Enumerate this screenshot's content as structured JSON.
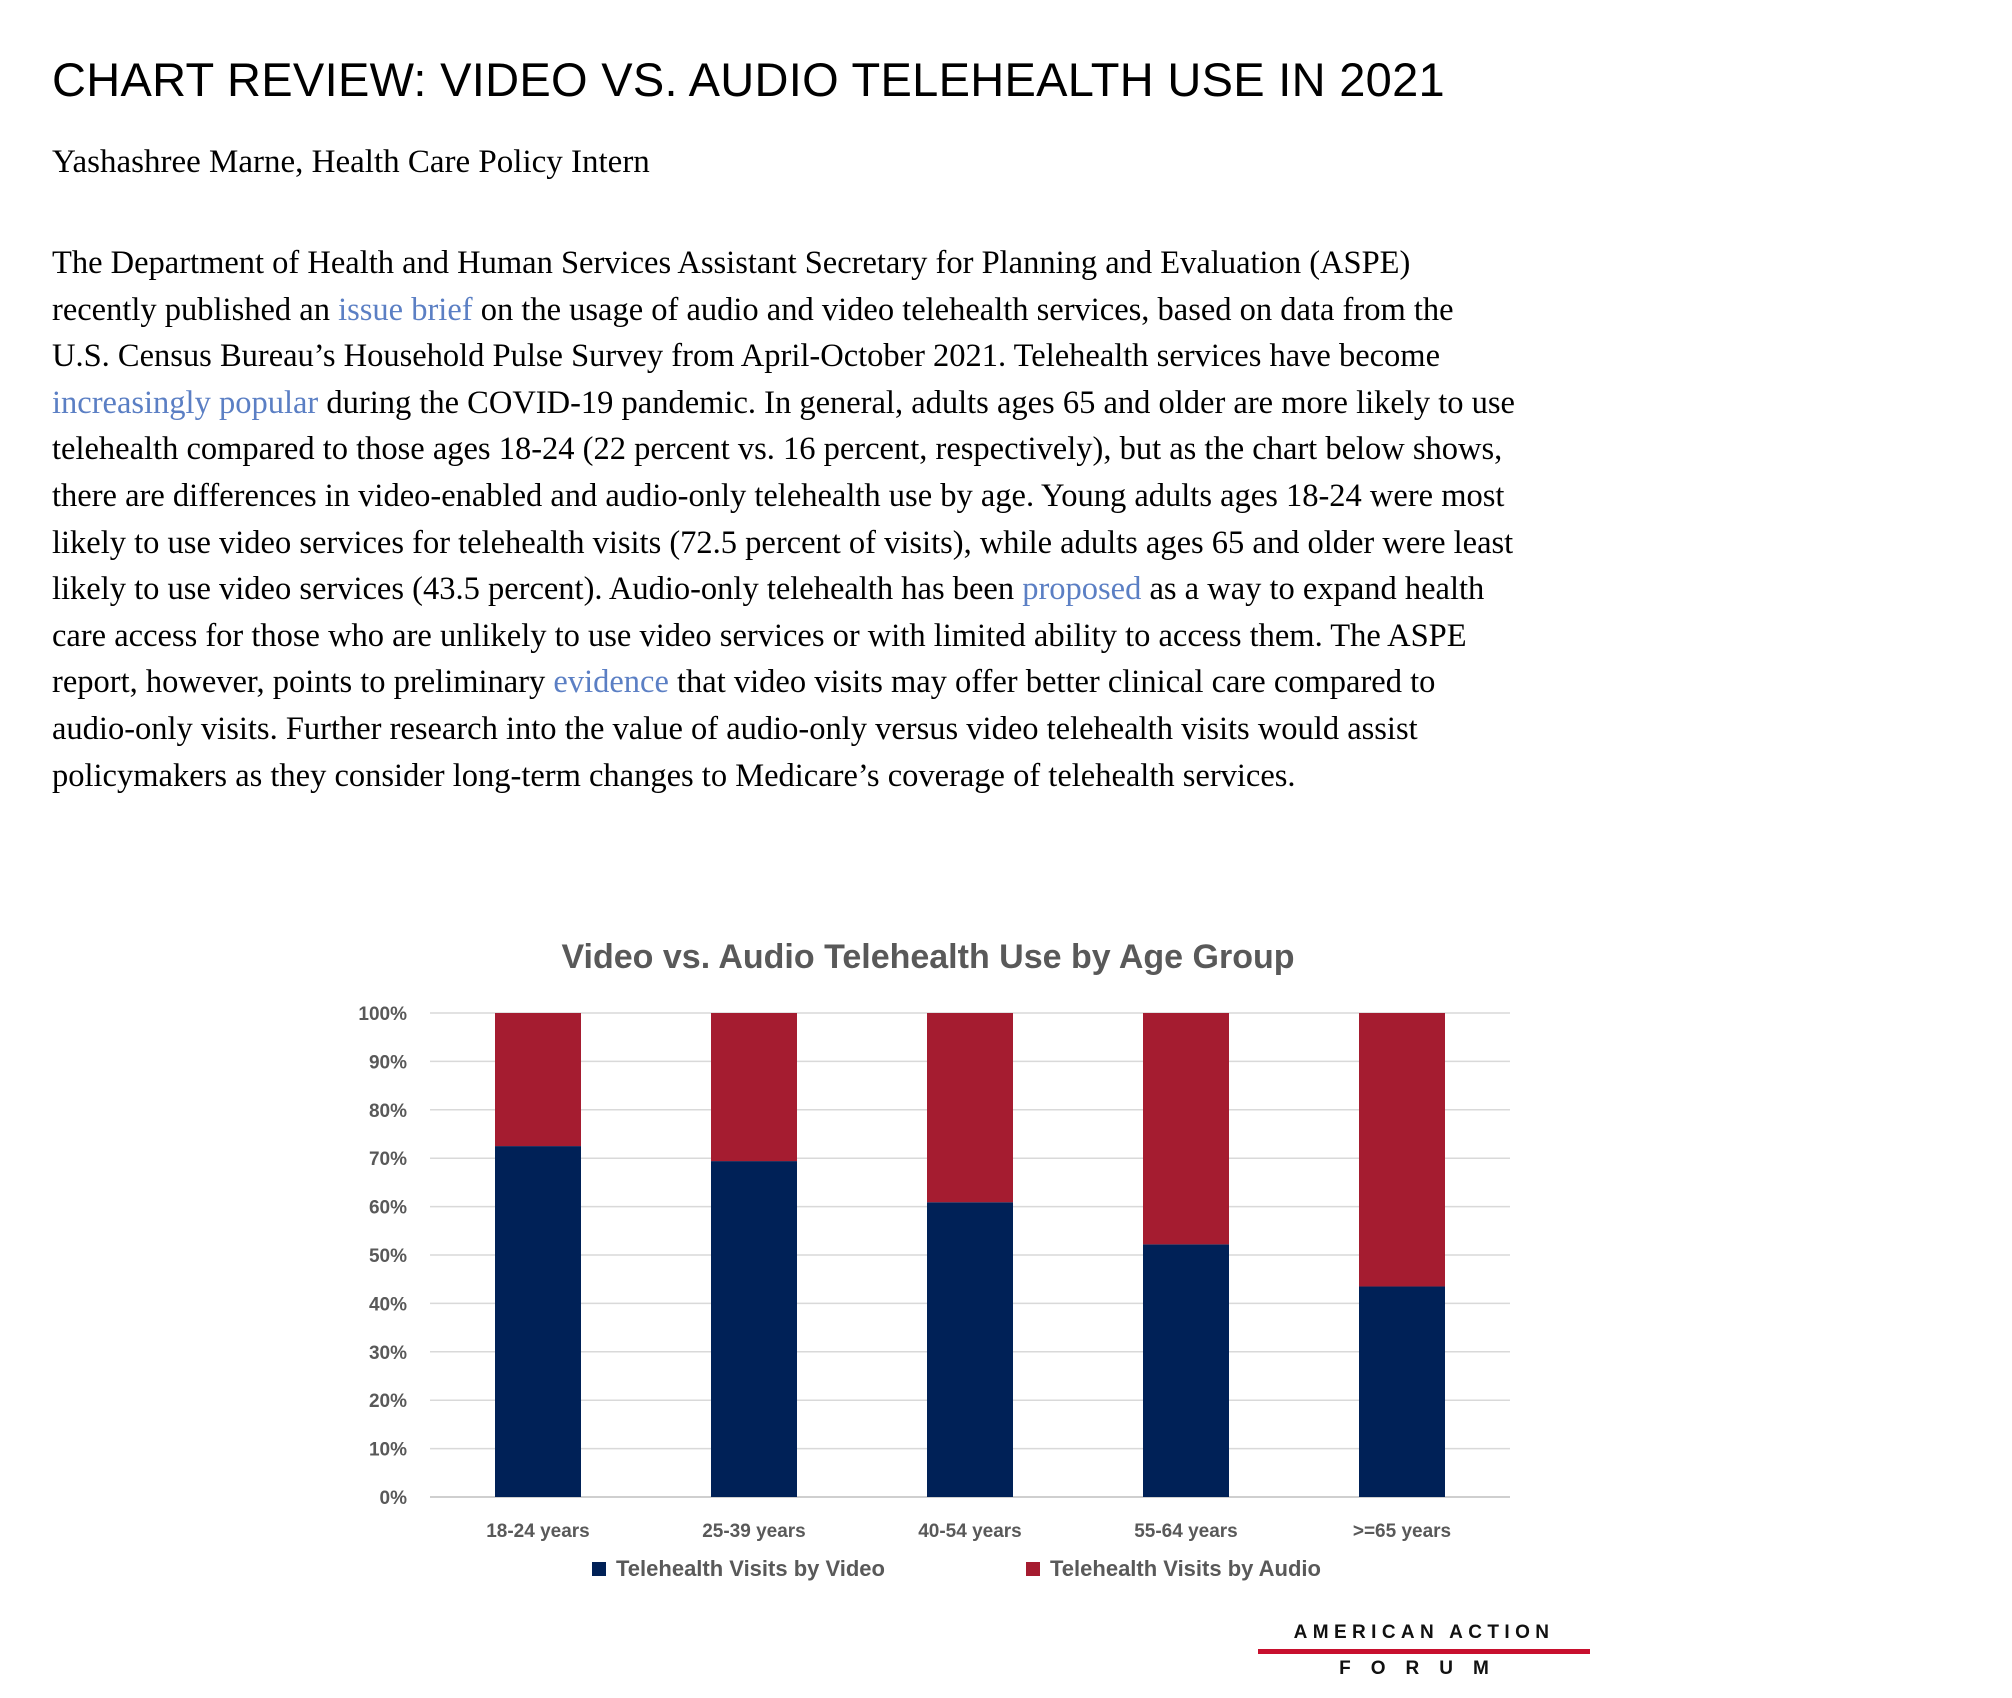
{
  "document": {
    "title": "CHART REVIEW: VIDEO VS. AUDIO TELEHEALTH USE IN 2021",
    "byline": "Yashashree Marne, Health Care Policy Intern",
    "paragraph": {
      "l1": "The Department of Health and Human Services Assistant Secretary for Planning and Evaluation (ASPE)",
      "l2_a": "recently published an ",
      "l2_link": "issue brief",
      "l2_b": " on the usage of audio and video telehealth services, based on data from the",
      "l3": "U.S. Census Bureau’s Household Pulse Survey from April-October 2021. Telehealth services have become",
      "l4_link": "increasingly popular",
      "l4_b": " during the COVID-19 pandemic. In general, adults ages 65 and older are more likely to use",
      "l5": "telehealth compared to those ages 18-24 (22 percent vs. 16 percent, respectively), but as the chart below shows,",
      "l6": "there are differences in video-enabled and audio-only telehealth use by age. Young adults ages 18-24 were most",
      "l7": "likely to use video services for telehealth visits (72.5 percent of visits), while adults ages 65 and older were least",
      "l8_a": "likely to use video services (43.5 percent). Audio-only telehealth has been ",
      "l8_link": "proposed",
      "l8_b": " as a way to expand health",
      "l9": "care access for those who are unlikely to use video services or with limited ability to access them. The ASPE",
      "l10_a": "report, however, points to preliminary ",
      "l10_link": "evidence",
      "l10_b": " that video visits may offer better clinical care compared to",
      "l11": "audio-only visits. Further research into the value of audio-only versus video telehealth visits would assist",
      "l12": "policymakers as they consider long-term changes to Medicare’s coverage of telehealth services."
    },
    "link_color": "#5b7fc4"
  },
  "chart_data": {
    "type": "bar",
    "stacked": true,
    "title": "Video vs. Audio Telehealth Use by Age Group",
    "categories": [
      "18-24 years",
      "25-39 years",
      "40-54 years",
      "55-64 years",
      ">=65 years"
    ],
    "series": [
      {
        "name": "Telehealth Visits by Video",
        "values": [
          72.5,
          69.4,
          60.9,
          52.2,
          43.5
        ],
        "color": "#002157"
      },
      {
        "name": "Telehealth Visits by Audio",
        "values": [
          27.5,
          30.6,
          39.1,
          47.8,
          56.5
        ],
        "color": "#a51c30"
      }
    ],
    "ylim": [
      0,
      100
    ],
    "yticks": [
      "0%",
      "10%",
      "20%",
      "30%",
      "40%",
      "50%",
      "60%",
      "70%",
      "80%",
      "90%",
      "100%"
    ],
    "grid": true,
    "legend": "bottom"
  },
  "logo": {
    "line1": "AMERICAN ACTION",
    "line2": "FORUM",
    "bar_color": "#c8102e"
  }
}
